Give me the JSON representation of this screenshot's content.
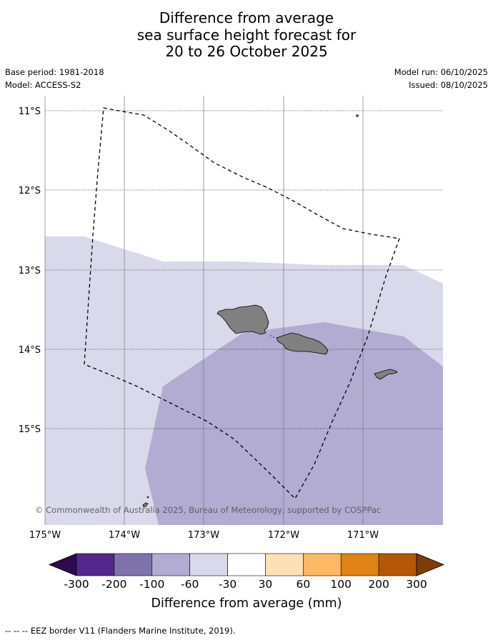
{
  "title": {
    "line1": "Difference from average",
    "line2": "sea surface height forecast for",
    "line3": "20 to 26 October 2025"
  },
  "meta": {
    "base_period": "Base period: 1981-2018",
    "model": "Model: ACCESS-S2",
    "model_run": "Model run: 06/10/2025",
    "issued": "Issued: 08/10/2025"
  },
  "map": {
    "lat_labels": [
      "11°S",
      "12°S",
      "13°S",
      "14°S",
      "15°S"
    ],
    "lon_labels": [
      "175°W",
      "174°W",
      "173°W",
      "172°W",
      "171°W"
    ],
    "copyright": "© Commonwealth of Australia 2025, Bureau of Meteorology, supported by COSPPac"
  },
  "colorbar": {
    "label": "Difference from average (mm)",
    "ticks": [
      "-300",
      "-200",
      "-100",
      "-60",
      "-30",
      "30",
      "60",
      "100",
      "200",
      "300"
    ],
    "colors": [
      "#2d0a4e",
      "#54278f",
      "#8073ac",
      "#b2abd2",
      "#d8daeb",
      "#ffffff",
      "#fee0b6",
      "#fdb863",
      "#e08214",
      "#b35806",
      "#7f3b08"
    ]
  },
  "footer": {
    "legend": "-- -- -- EEZ border V11 (Flanders Marine Institute, 2019)."
  }
}
